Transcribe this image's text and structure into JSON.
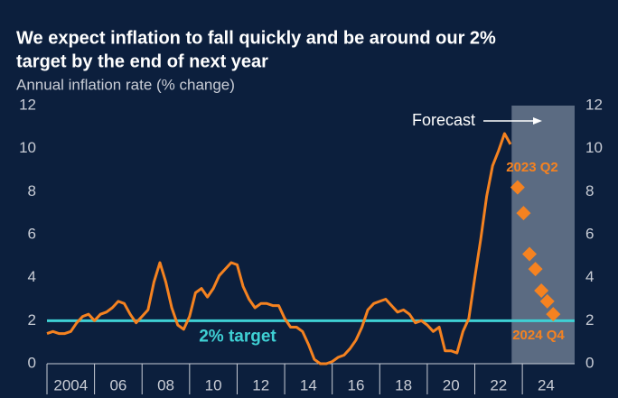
{
  "chart_data": {
    "type": "line",
    "title_lines": [
      "We expect inflation to fall quickly and be around our 2%",
      "target by the end of next year"
    ],
    "subtitle": "Annual inflation rate (% change)",
    "x": [
      2003,
      2003.25,
      2003.5,
      2003.75,
      2004,
      2004.25,
      2004.5,
      2004.75,
      2005,
      2005.25,
      2005.5,
      2005.75,
      2006,
      2006.25,
      2006.5,
      2006.75,
      2007,
      2007.25,
      2007.5,
      2007.75,
      2008,
      2008.25,
      2008.5,
      2008.75,
      2009,
      2009.25,
      2009.5,
      2009.75,
      2010,
      2010.25,
      2010.5,
      2010.75,
      2011,
      2011.25,
      2011.5,
      2011.75,
      2012,
      2012.25,
      2012.5,
      2012.75,
      2013,
      2013.25,
      2013.5,
      2013.75,
      2014,
      2014.25,
      2014.5,
      2014.75,
      2015,
      2015.25,
      2015.5,
      2015.75,
      2016,
      2016.25,
      2016.5,
      2016.75,
      2017,
      2017.25,
      2017.5,
      2017.75,
      2018,
      2018.25,
      2018.5,
      2018.75,
      2019,
      2019.25,
      2019.5,
      2019.75,
      2020,
      2020.25,
      2020.5,
      2020.75,
      2021,
      2021.25,
      2021.5,
      2021.75,
      2022,
      2022.25,
      2022.5
    ],
    "series": [
      {
        "color": "#f58220",
        "values": [
          1.4,
          1.5,
          1.4,
          1.4,
          1.5,
          1.9,
          2.2,
          2.3,
          2.0,
          2.3,
          2.4,
          2.6,
          2.9,
          2.8,
          2.3,
          1.9,
          2.2,
          2.5,
          3.8,
          4.7,
          3.8,
          2.6,
          1.8,
          1.6,
          2.2,
          3.3,
          3.5,
          3.1,
          3.5,
          4.1,
          4.4,
          4.7,
          4.6,
          3.6,
          3.0,
          2.6,
          2.8,
          2.8,
          2.7,
          2.7,
          2.1,
          1.7,
          1.7,
          1.5,
          0.9,
          0.2,
          0.0,
          0.0,
          0.1,
          0.3,
          0.4,
          0.7,
          1.1,
          1.7,
          2.5,
          2.8,
          2.9,
          3.0,
          2.7,
          2.4,
          2.5,
          2.3,
          1.9,
          2.0,
          1.8,
          1.5,
          1.7,
          0.6,
          0.6,
          0.5,
          1.5,
          2.1,
          4.0,
          5.8,
          7.8,
          9.2,
          9.9,
          10.7,
          10.2
        ]
      }
    ],
    "forecast": {
      "label": "Forecast",
      "region": [
        2022.55,
        2025.2
      ],
      "color": "#f58220",
      "x": [
        2022.8,
        2023.05,
        2023.3,
        2023.55,
        2023.8,
        2024.05,
        2024.3
      ],
      "values": [
        8.2,
        7.0,
        5.1,
        4.4,
        3.4,
        2.9,
        2.3
      ],
      "annotations": [
        "2023 Q2",
        "2024 Q4"
      ]
    },
    "target": {
      "value": 2,
      "label": "2% target",
      "color": "#3fd0d4"
    },
    "xlim": [
      2003,
      2025.2
    ],
    "xticks": [
      2004,
      {
        "value": 2006,
        "label": "06"
      },
      {
        "value": 2008,
        "label": "08"
      },
      {
        "value": 2010,
        "label": "10"
      },
      {
        "value": 2012,
        "label": "12"
      },
      {
        "value": 2014,
        "label": "14"
      },
      {
        "value": 2016,
        "label": "16"
      },
      {
        "value": 2018,
        "label": "18"
      },
      {
        "value": 2020,
        "label": "20"
      },
      {
        "value": 2022,
        "label": "22"
      },
      {
        "value": 2024,
        "label": "24"
      }
    ],
    "ylim": [
      0,
      12
    ],
    "yticks": [
      0,
      2,
      4,
      6,
      8,
      10,
      12
    ],
    "y2lim": [
      0,
      12
    ],
    "y2ticks": [
      0,
      2,
      4,
      6,
      8,
      10,
      12
    ]
  }
}
